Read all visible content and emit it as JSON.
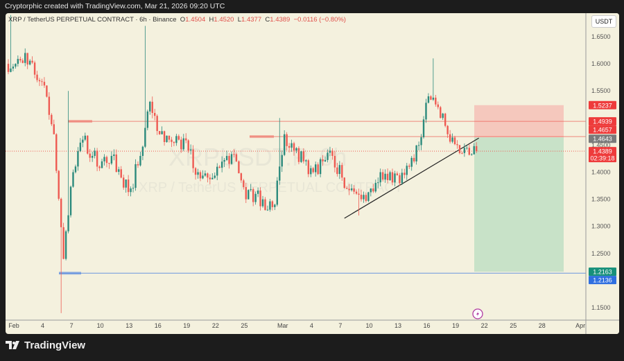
{
  "header": {
    "caption": "Cryptorphic created with TradingView.com, Mar 21, 2026 09:20 UTC"
  },
  "legend": {
    "symbol": "XRP / TetherUS PERPETUAL CONTRACT · 6h · Binance",
    "o_label": "O",
    "o": "1.4504",
    "h_label": "H",
    "h": "1.4520",
    "l_label": "L",
    "l": "1.4377",
    "c_label": "C",
    "c": "1.4389",
    "change": "−0.0116 (−0.80%)"
  },
  "watermark": {
    "ticker": "XRPUSDT.P, 6h",
    "name": "XRP / TetherUS PERPETUAL CONTRACT"
  },
  "currency_button": "USDT",
  "footer": {
    "brand": "TradingView"
  },
  "colors": {
    "up": "#2b8a7c",
    "down": "#ee5a52",
    "background": "#f4f1de",
    "long_target": "#c8e2c8",
    "long_stop": "#f5c8bd"
  },
  "chart_data": {
    "type": "candlestick",
    "interval": "6h",
    "ylim": [
      1.11,
      1.69
    ],
    "grid": false,
    "y_ticks": [
      "1.6500",
      "1.6000",
      "1.5500",
      "1.4500",
      "1.4000",
      "1.3500",
      "1.3000",
      "1.2500",
      "1.1500"
    ],
    "x_ticks": [
      "Feb",
      "4",
      "7",
      "10",
      "13",
      "16",
      "19",
      "22",
      "25",
      "Mar",
      "4",
      "7",
      "10",
      "13",
      "16",
      "19",
      "22",
      "25",
      "28",
      "Apr"
    ],
    "daily": [
      {
        "d": "Feb 1",
        "c": 1.6,
        "h": 1.69
      },
      {
        "d": "Feb 2",
        "c": 1.62
      },
      {
        "d": "Feb 3",
        "c": 1.58
      },
      {
        "d": "Feb 4",
        "c": 1.56
      },
      {
        "d": "Feb 5",
        "c": 1.47
      },
      {
        "d": "Feb 6",
        "c": 1.24,
        "l": 1.14
      },
      {
        "d": "Feb 7",
        "c": 1.4,
        "h": 1.55
      },
      {
        "d": "Feb 8",
        "c": 1.46
      },
      {
        "d": "Feb 9",
        "c": 1.43
      },
      {
        "d": "Feb 10",
        "c": 1.42
      },
      {
        "d": "Feb 11",
        "c": 1.43
      },
      {
        "d": "Feb 12",
        "c": 1.39
      },
      {
        "d": "Feb 13",
        "c": 1.37
      },
      {
        "d": "Feb 14",
        "c": 1.43
      },
      {
        "d": "Feb 15",
        "c": 1.53,
        "h": 1.67
      },
      {
        "d": "Feb 16",
        "c": 1.47
      },
      {
        "d": "Feb 17",
        "c": 1.46
      },
      {
        "d": "Feb 18",
        "c": 1.46
      },
      {
        "d": "Feb 19",
        "c": 1.44
      },
      {
        "d": "Feb 20",
        "c": 1.4
      },
      {
        "d": "Feb 21",
        "c": 1.39
      },
      {
        "d": "Feb 22",
        "c": 1.41
      },
      {
        "d": "Feb 23",
        "c": 1.43
      },
      {
        "d": "Feb 24",
        "c": 1.42
      },
      {
        "d": "Feb 25",
        "c": 1.35
      },
      {
        "d": "Feb 26",
        "c": 1.36
      },
      {
        "d": "Feb 27",
        "c": 1.33
      },
      {
        "d": "Feb 28",
        "c": 1.34
      },
      {
        "d": "Mar 1",
        "c": 1.47,
        "h": 1.5
      },
      {
        "d": "Mar 2",
        "c": 1.44
      },
      {
        "d": "Mar 3",
        "c": 1.42
      },
      {
        "d": "Mar 4",
        "c": 1.4
      },
      {
        "d": "Mar 5",
        "c": 1.42
      },
      {
        "d": "Mar 6",
        "c": 1.43
      },
      {
        "d": "Mar 7",
        "c": 1.39
      },
      {
        "d": "Mar 8",
        "c": 1.37
      },
      {
        "d": "Mar 9",
        "c": 1.35,
        "l": 1.32
      },
      {
        "d": "Mar 10",
        "c": 1.37
      },
      {
        "d": "Mar 11",
        "c": 1.4
      },
      {
        "d": "Mar 12",
        "c": 1.4
      },
      {
        "d": "Mar 13",
        "c": 1.38
      },
      {
        "d": "Mar 14",
        "c": 1.41
      },
      {
        "d": "Mar 15",
        "c": 1.45
      },
      {
        "d": "Mar 16",
        "c": 1.54
      },
      {
        "d": "Mar 17",
        "c": 1.52,
        "h": 1.61
      },
      {
        "d": "Mar 18",
        "c": 1.47
      },
      {
        "d": "Mar 19",
        "c": 1.45
      },
      {
        "d": "Mar 20",
        "c": 1.445
      },
      {
        "d": "Mar 21",
        "c": 1.4389
      }
    ],
    "levels": [
      {
        "label": "1.4939",
        "price": 1.4939,
        "color": "#ee5a52"
      },
      {
        "label": "1.4657",
        "price": 1.4657,
        "color": "#ee5a52"
      },
      {
        "label": "1.2136",
        "price": 1.2136,
        "color": "#2f6fe0"
      }
    ],
    "position": {
      "type": "long",
      "stop_label": "1.5237",
      "stop": 1.5237,
      "entry_label": "1.4643",
      "entry": 1.4643,
      "target_label": "1.2163",
      "target": 1.2163
    },
    "last_price": {
      "label": "1.4389",
      "countdown": "02:39:18",
      "price": 1.4389
    },
    "trendline": {
      "from": {
        "date": "Mar 8",
        "price": 1.315
      },
      "to": {
        "date": "Mar 22",
        "price": 1.463
      }
    }
  }
}
